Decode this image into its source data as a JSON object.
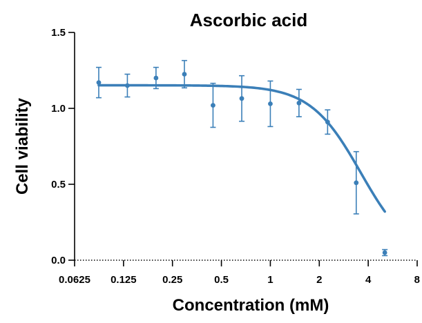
{
  "chart_data": {
    "type": "scatter",
    "title": "Ascorbic acid",
    "xlabel": "Concentration (mM)",
    "ylabel": "Cell viability",
    "xscale": "log2",
    "xlim": [
      0.0625,
      8
    ],
    "ylim": [
      0,
      1.5
    ],
    "x_ticks": [
      {
        "value": 0.0625,
        "label": "0.0625"
      },
      {
        "value": 0.125,
        "label": "0.125"
      },
      {
        "value": 0.25,
        "label": "0.25"
      },
      {
        "value": 0.5,
        "label": "0.5"
      },
      {
        "value": 1,
        "label": "1"
      },
      {
        "value": 2,
        "label": "2"
      },
      {
        "value": 4,
        "label": "4"
      },
      {
        "value": 8,
        "label": "8"
      }
    ],
    "y_ticks": [
      {
        "value": 0,
        "label": "0.0"
      },
      {
        "value": 0.5,
        "label": "0.5"
      },
      {
        "value": 1.0,
        "label": "1.0"
      },
      {
        "value": 1.5,
        "label": "1.5"
      }
    ],
    "grid": false,
    "color": "#3b7fb8",
    "series": [
      {
        "points": [
          {
            "x": 0.088,
            "y": 1.17,
            "err": 0.1
          },
          {
            "x": 0.132,
            "y": 1.15,
            "err": 0.075
          },
          {
            "x": 0.198,
            "y": 1.2,
            "err": 0.07
          },
          {
            "x": 0.296,
            "y": 1.225,
            "err": 0.09
          },
          {
            "x": 0.444,
            "y": 1.02,
            "err": 0.145
          },
          {
            "x": 0.667,
            "y": 1.065,
            "err": 0.15
          },
          {
            "x": 1.0,
            "y": 1.03,
            "err": 0.15
          },
          {
            "x": 1.5,
            "y": 1.035,
            "err": 0.09
          },
          {
            "x": 2.25,
            "y": 0.91,
            "err": 0.08
          },
          {
            "x": 3.375,
            "y": 0.51,
            "err": 0.205
          },
          {
            "x": 5.06,
            "y": 0.05,
            "err": 0.02
          }
        ],
        "fit": {
          "model": "4PL",
          "top": 1.152,
          "bottom": 0.0,
          "ec50": 3.6,
          "hill": 2.8,
          "x_range": [
            0.088,
            5.06
          ]
        }
      }
    ]
  }
}
